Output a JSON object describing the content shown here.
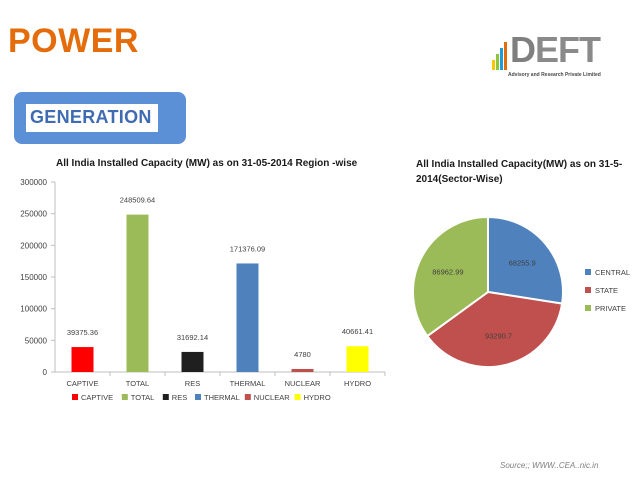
{
  "header": {
    "title": "POWER"
  },
  "logo": {
    "text_d": "D",
    "text_rest": "EFT",
    "tagline": "Advisory and Research Private Limited"
  },
  "section": {
    "label": "GENERATION"
  },
  "source": "Source;; WWW..CEA..nic.in",
  "colors": {
    "accent": "#e46c0a",
    "section_box": "#5b8fd6"
  },
  "chart_data": [
    {
      "type": "bar",
      "title": "All India Installed Capacity (MW) as on 31-05-2014 Region -wise",
      "categories": [
        "CAPTIVE",
        "TOTAL",
        "RES",
        "THERMAL",
        "NUCLEAR",
        "HYDRO"
      ],
      "values": [
        39375.36,
        248509.64,
        31692.14,
        171376.09,
        4780,
        40661.41
      ],
      "value_labels": [
        "39375.36",
        "248509.64",
        "31692.14",
        "171376.09",
        "4780",
        "40661.41"
      ],
      "colors": [
        "#ff0000",
        "#9bbb59",
        "#1f1f1f",
        "#4f81bd",
        "#c0504d",
        "#ffff00"
      ],
      "ylim": [
        0,
        300000
      ],
      "yticks": [
        "0",
        "50000",
        "100000",
        "150000",
        "200000",
        "250000",
        "300000"
      ],
      "grid": false,
      "legend": "bottom",
      "legend_entries": [
        "CAPTIVE",
        "TOTAL",
        "RES",
        "THERMAL",
        "NUCLEAR",
        "HYDRO"
      ]
    },
    {
      "type": "pie",
      "title": "All India Installed Capacity(MW) as on 31-5-2014(Sector-Wise)",
      "labels": [
        "CENTRAL",
        "STATE",
        "PRIVATE"
      ],
      "values": [
        68255.9,
        93290.7,
        86962.99
      ],
      "value_labels": [
        "68255.9",
        "93290.7",
        "86962.99"
      ],
      "colors": [
        "#4f81bd",
        "#c0504d",
        "#9bbb59"
      ],
      "legend": "right"
    }
  ]
}
